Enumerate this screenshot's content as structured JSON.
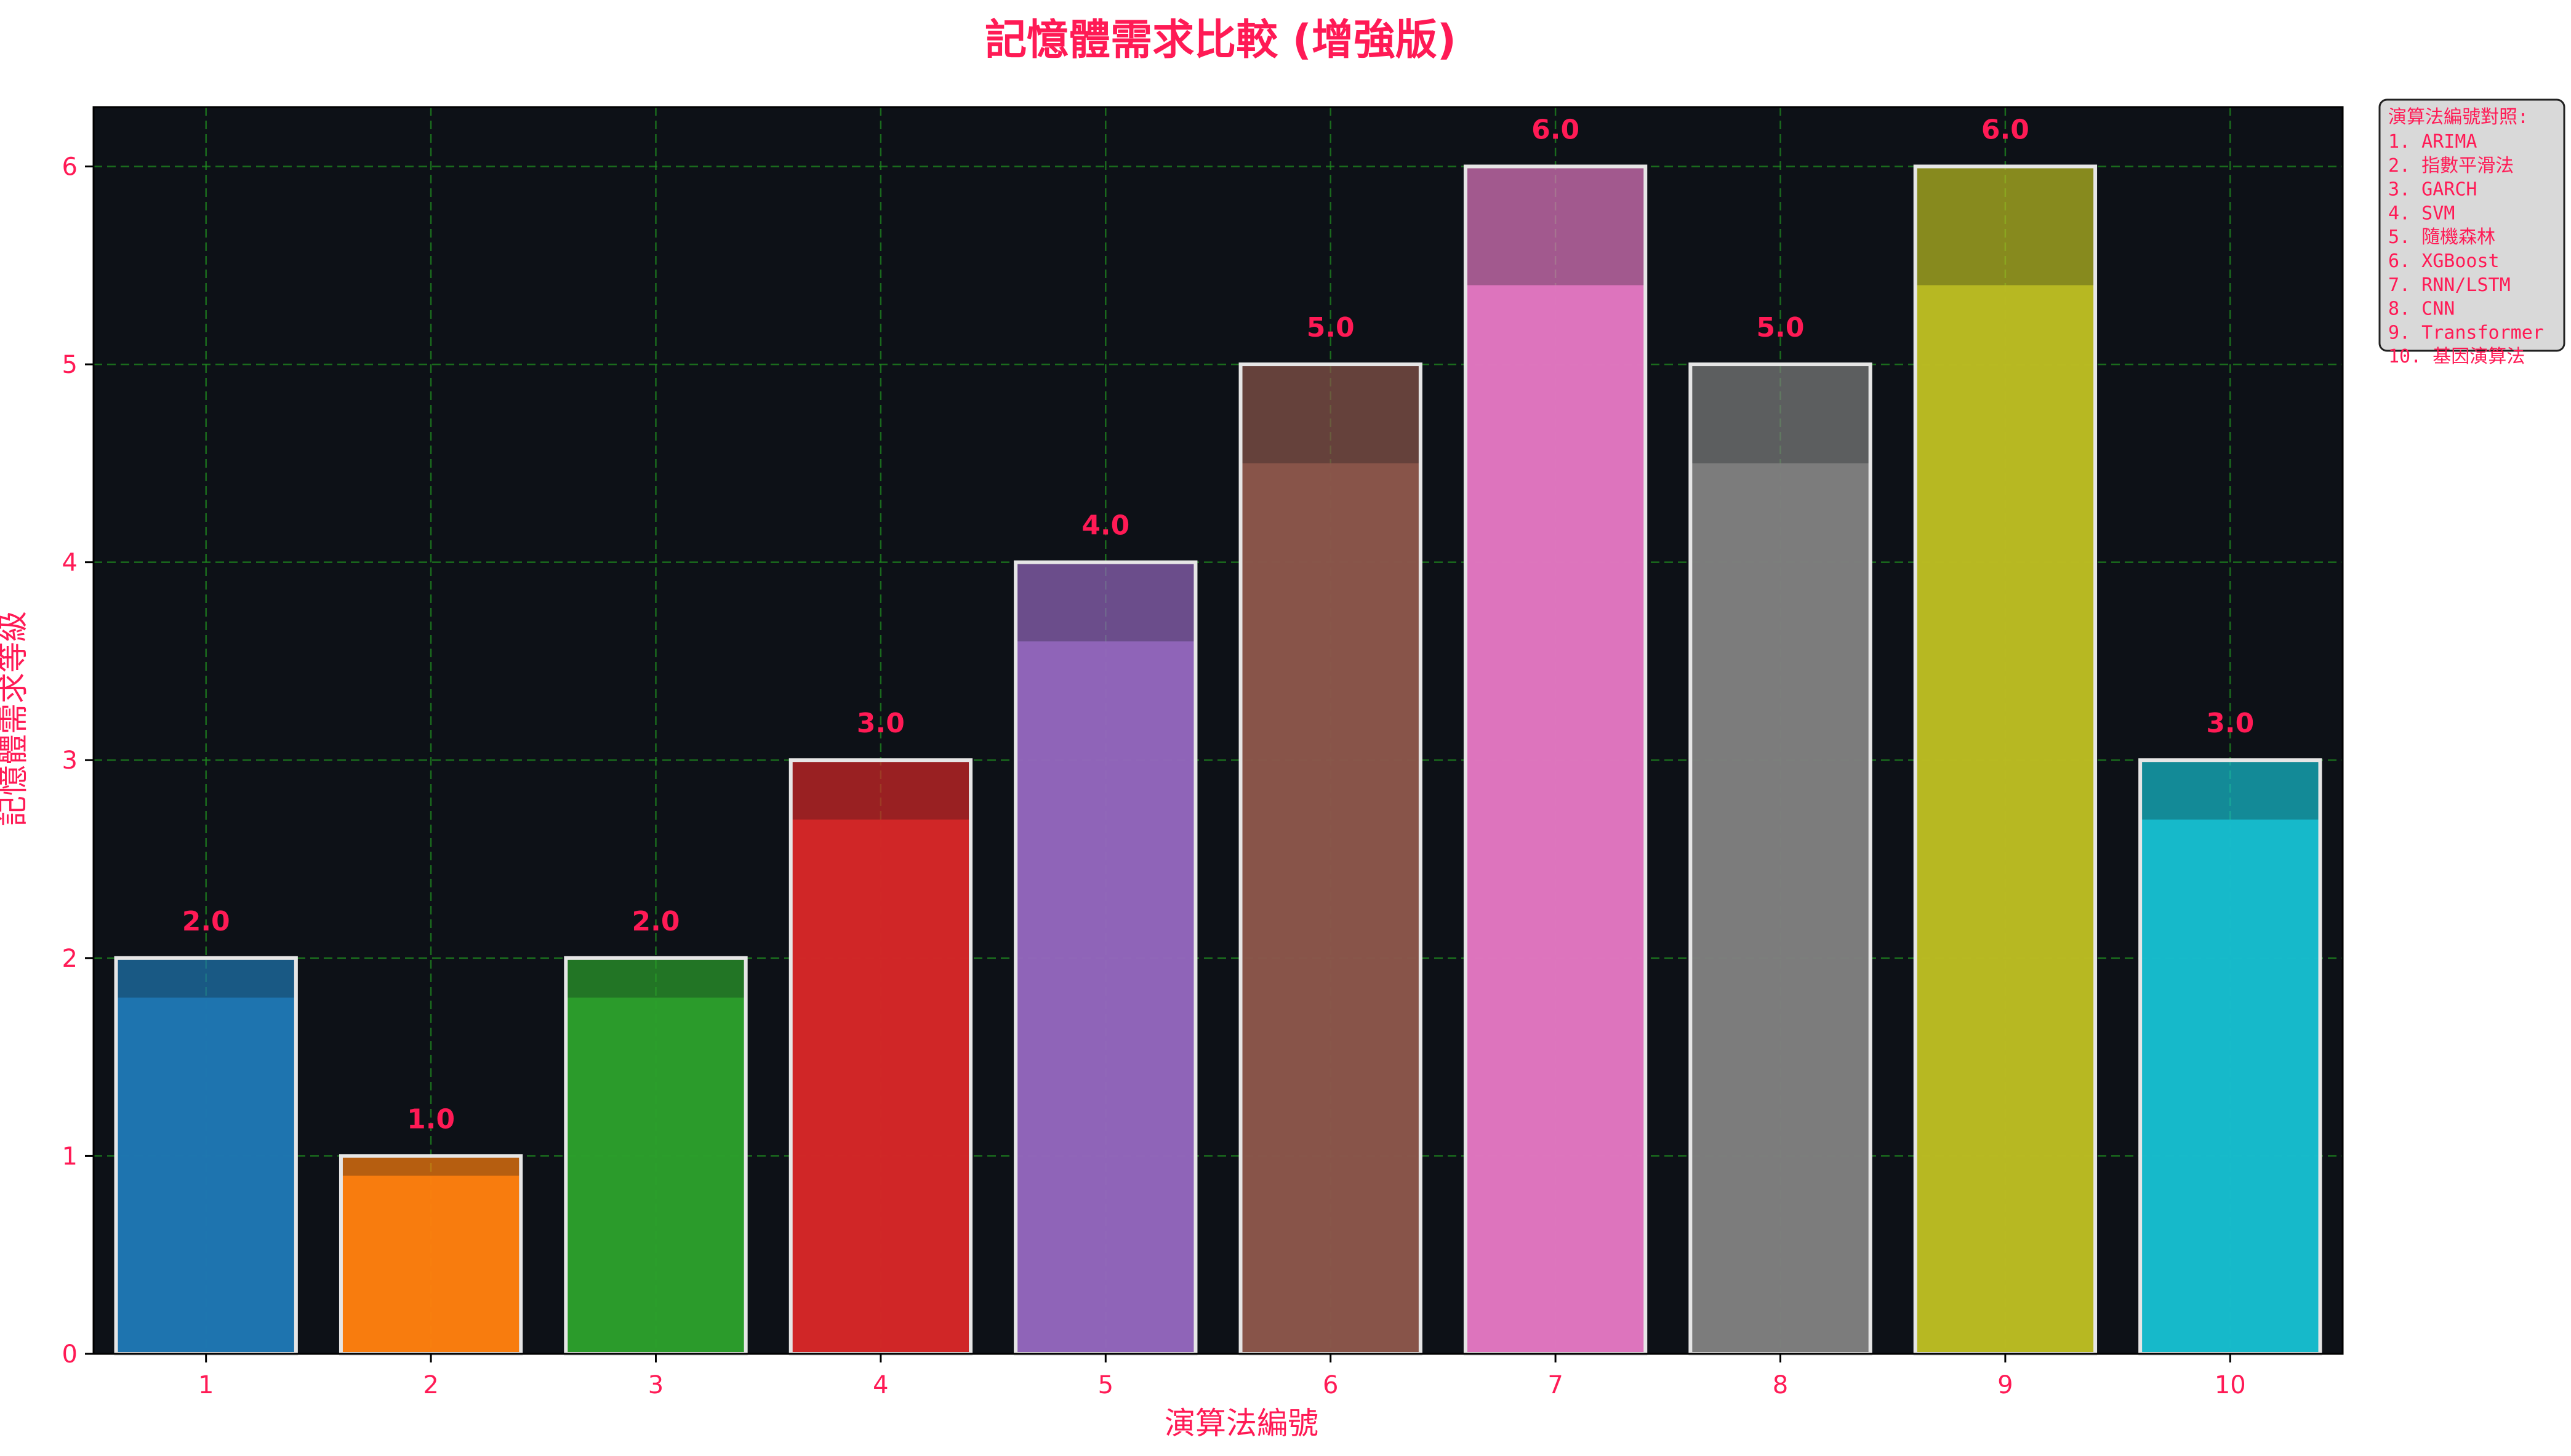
{
  "chart_data": {
    "type": "bar",
    "title": "記憶體需求比較 (增強版)",
    "xlabel": "演算法編號",
    "ylabel": "記憶體需求等級",
    "categories": [
      "1",
      "2",
      "3",
      "4",
      "5",
      "6",
      "7",
      "8",
      "9",
      "10"
    ],
    "values": [
      2,
      1,
      2,
      3,
      4,
      5,
      6,
      5,
      6,
      3
    ],
    "value_labels": [
      "2.0",
      "1.0",
      "2.0",
      "3.0",
      "4.0",
      "5.0",
      "6.0",
      "5.0",
      "6.0",
      "3.0"
    ],
    "ylim": [
      0,
      6.3
    ],
    "yticks": [
      0,
      1,
      2,
      3,
      4,
      5,
      6
    ],
    "grid": true,
    "legend_placement": "outside-top-right",
    "legend": {
      "title": "演算法編號對照:",
      "entries": [
        "1. ARIMA",
        "2. 指數平滑法",
        "3. GARCH",
        "4. SVM",
        "5. 隨機森林",
        "6. XGBoost",
        "7. RNN/LSTM",
        "8. CNN",
        "9. Transformer",
        "10. 基因演算法"
      ]
    },
    "bar_colors": [
      "#1f77b4",
      "#ff7f0e",
      "#2ca02c",
      "#d62728",
      "#9467bd",
      "#8c564b",
      "#e377c2",
      "#7f7f7f",
      "#bcbd22",
      "#17becf"
    ],
    "colors": {
      "text": "#ff1a55",
      "plot_background": "#0d1117",
      "grid": "#1f8a1f",
      "bar_edge": "#e6e6e6",
      "legend_background": "#d9d9d9"
    }
  }
}
